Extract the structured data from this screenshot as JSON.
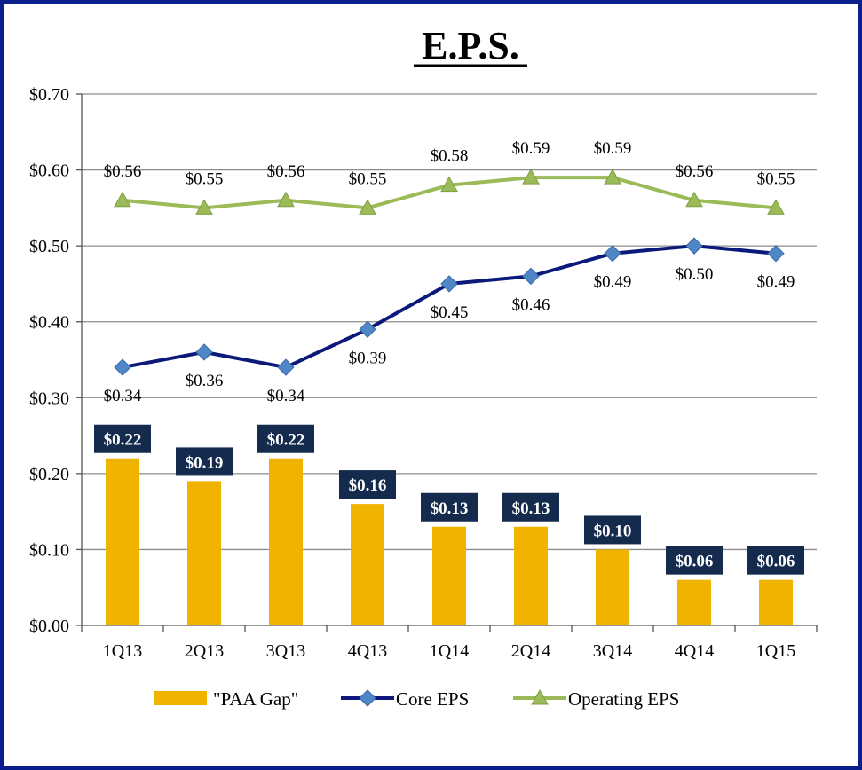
{
  "colors": {
    "frame": "#0b1f8c",
    "bar": "#f0b400",
    "bar_label_bg": "#142b4e",
    "core_line": "#0b1a7a",
    "core_marker": "#4f86c6",
    "operating_line": "#9bbb59",
    "operating_marker": "#9bbb59",
    "grid": "#8c8c8c"
  },
  "chart_data": {
    "type": "bar",
    "title": "E.P.S.",
    "categories": [
      "1Q13",
      "2Q13",
      "3Q13",
      "4Q13",
      "1Q14",
      "2Q14",
      "3Q14",
      "4Q14",
      "1Q15"
    ],
    "ylim": [
      0,
      0.7
    ],
    "yticks": [
      0,
      0.1,
      0.2,
      0.3,
      0.4,
      0.5,
      0.6,
      0.7
    ],
    "ytick_labels": [
      "$0.00",
      "$0.10",
      "$0.20",
      "$0.30",
      "$0.40",
      "$0.50",
      "$0.60",
      "$0.70"
    ],
    "grid": true,
    "legend_position": "bottom",
    "series": [
      {
        "name": "\"PAA Gap\"",
        "type": "bar",
        "values": [
          0.22,
          0.19,
          0.22,
          0.16,
          0.13,
          0.13,
          0.1,
          0.06,
          0.06
        ],
        "labels": [
          "$0.22",
          "$0.19",
          "$0.22",
          "$0.16",
          "$0.13",
          "$0.13",
          "$0.10",
          "$0.06",
          "$0.06"
        ]
      },
      {
        "name": "Core EPS",
        "type": "line",
        "marker": "diamond",
        "values": [
          0.34,
          0.36,
          0.34,
          0.39,
          0.45,
          0.46,
          0.49,
          0.5,
          0.49
        ],
        "labels": [
          "$0.34",
          "$0.36",
          "$0.34",
          "$0.39",
          "$0.45",
          "$0.46",
          "$0.49",
          "$0.50",
          "$0.49"
        ]
      },
      {
        "name": "Operating EPS",
        "type": "line",
        "marker": "triangle",
        "values": [
          0.56,
          0.55,
          0.56,
          0.55,
          0.58,
          0.59,
          0.59,
          0.56,
          0.55
        ],
        "labels": [
          "$0.56",
          "$0.55",
          "$0.56",
          "$0.55",
          "$0.58",
          "$0.59",
          "$0.59",
          "$0.56",
          "$0.55"
        ]
      }
    ]
  }
}
